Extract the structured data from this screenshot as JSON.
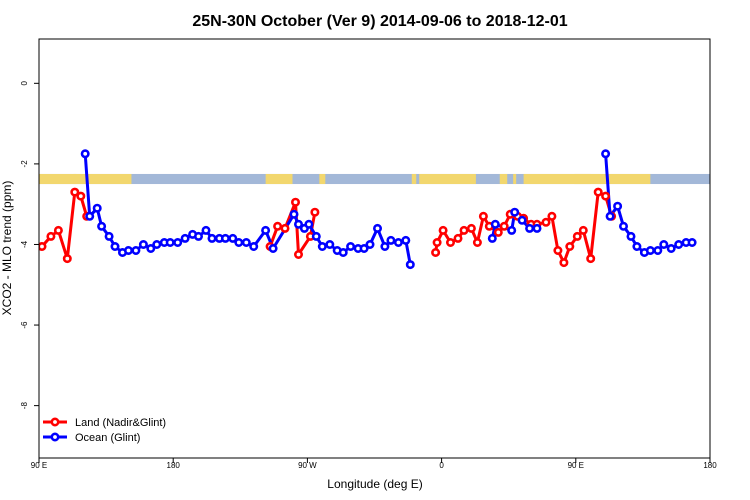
{
  "chart_data": {
    "type": "line",
    "title": "25N-30N October (Ver 9)   2014-09-06 to 2018-12-01",
    "xlabel": "Longitude (deg E)",
    "ylabel": "XCO2 - MLO trend (ppm)",
    "xlim": [
      90,
      540
    ],
    "ylim": [
      -9.3,
      1.1
    ],
    "x_ticks": [
      {
        "value": 90,
        "label": "90 E"
      },
      {
        "value": 180,
        "label": "180"
      },
      {
        "value": 270,
        "label": "90 W"
      },
      {
        "value": 360,
        "label": "0"
      },
      {
        "value": 450,
        "label": "90 E"
      },
      {
        "value": 540,
        "label": "180"
      }
    ],
    "y_ticks": [
      {
        "value": 0,
        "label": "0"
      },
      {
        "value": -2,
        "label": "-2"
      },
      {
        "value": -4,
        "label": "-4"
      },
      {
        "value": -6,
        "label": "-6"
      },
      {
        "value": -8,
        "label": "-8"
      }
    ],
    "legend_position": "bottom-left",
    "land_ocean_strip": {
      "y_top": -2.25,
      "y_bottom": -2.5,
      "ocean_color": "#a3b8d8",
      "land_color": "#f2d76e",
      "land_ranges": [
        [
          90,
          115
        ],
        [
          113,
          152
        ],
        [
          242,
          260
        ],
        [
          278,
          282
        ],
        [
          340,
          343
        ],
        [
          345,
          383
        ],
        [
          399,
          404
        ],
        [
          408,
          410
        ],
        [
          415,
          460
        ],
        [
          449,
          500
        ]
      ]
    },
    "series": [
      {
        "name": "Land (Nadir&Glint)",
        "color": "#ff0000",
        "segments": [
          [
            [
              92,
              -4.05
            ],
            [
              98,
              -3.8
            ],
            [
              103,
              -3.65
            ],
            [
              109,
              -4.35
            ],
            [
              114,
              -2.7
            ],
            [
              118,
              -2.8
            ],
            [
              122,
              -3.3
            ]
          ],
          [
            [
              245,
              -4.05
            ],
            [
              250,
              -3.55
            ],
            [
              255,
              -3.6
            ],
            [
              262,
              -2.95
            ],
            [
              264,
              -4.25
            ],
            [
              272,
              -3.8
            ],
            [
              275,
              -3.2
            ]
          ],
          [
            [
              356,
              -4.2
            ],
            [
              357,
              -3.95
            ],
            [
              361,
              -3.65
            ],
            [
              366,
              -3.95
            ],
            [
              371,
              -3.85
            ],
            [
              375,
              -3.65
            ],
            [
              380,
              -3.6
            ],
            [
              384,
              -3.95
            ],
            [
              388,
              -3.3
            ],
            [
              392,
              -3.55
            ],
            [
              398,
              -3.7
            ],
            [
              402,
              -3.55
            ],
            [
              406,
              -3.25
            ],
            [
              411,
              -3.3
            ],
            [
              415,
              -3.35
            ],
            [
              420,
              -3.5
            ],
            [
              424,
              -3.5
            ],
            [
              430,
              -3.45
            ],
            [
              434,
              -3.3
            ],
            [
              438,
              -4.15
            ],
            [
              442,
              -4.45
            ],
            [
              446,
              -4.05
            ],
            [
              451,
              -3.8
            ],
            [
              455,
              -3.65
            ],
            [
              460,
              -4.35
            ],
            [
              465,
              -2.7
            ],
            [
              470,
              -2.8
            ],
            [
              474,
              -3.3
            ]
          ]
        ]
      },
      {
        "name": "Ocean (Glint)",
        "color": "#0000ff",
        "segments": [
          [
            [
              121,
              -1.75
            ],
            [
              124,
              -3.3
            ],
            [
              129,
              -3.1
            ],
            [
              132,
              -3.55
            ],
            [
              137,
              -3.8
            ],
            [
              141,
              -4.05
            ],
            [
              146,
              -4.2
            ],
            [
              150,
              -4.15
            ],
            [
              155,
              -4.15
            ],
            [
              160,
              -4.0
            ],
            [
              165,
              -4.1
            ],
            [
              169,
              -4.0
            ],
            [
              174,
              -3.95
            ],
            [
              178,
              -3.95
            ],
            [
              183,
              -3.95
            ],
            [
              188,
              -3.85
            ],
            [
              193,
              -3.75
            ],
            [
              197,
              -3.8
            ],
            [
              202,
              -3.65
            ],
            [
              206,
              -3.85
            ],
            [
              211,
              -3.85
            ],
            [
              215,
              -3.85
            ],
            [
              220,
              -3.85
            ],
            [
              224,
              -3.95
            ],
            [
              229,
              -3.95
            ],
            [
              234,
              -4.05
            ],
            [
              242,
              -3.65
            ],
            [
              247,
              -4.1
            ],
            [
              261,
              -3.25
            ],
            [
              264,
              -3.5
            ],
            [
              268,
              -3.6
            ],
            [
              271,
              -3.5
            ],
            [
              276,
              -3.8
            ],
            [
              280,
              -4.05
            ],
            [
              285,
              -4.0
            ],
            [
              290,
              -4.15
            ],
            [
              294,
              -4.2
            ],
            [
              299,
              -4.05
            ],
            [
              304,
              -4.1
            ],
            [
              308,
              -4.1
            ],
            [
              312,
              -4.0
            ],
            [
              317,
              -3.6
            ],
            [
              322,
              -4.05
            ],
            [
              326,
              -3.9
            ],
            [
              331,
              -3.95
            ],
            [
              336,
              -3.9
            ],
            [
              339,
              -4.5
            ]
          ],
          [
            [
              394,
              -3.85
            ],
            [
              396,
              -3.5
            ],
            [
              407,
              -3.65
            ],
            [
              409,
              -3.2
            ],
            [
              414,
              -3.4
            ],
            [
              419,
              -3.6
            ],
            [
              424,
              -3.6
            ]
          ],
          [
            [
              470,
              -1.75
            ],
            [
              473,
              -3.3
            ],
            [
              478,
              -3.05
            ],
            [
              482,
              -3.55
            ],
            [
              487,
              -3.8
            ],
            [
              491,
              -4.05
            ],
            [
              496,
              -4.2
            ],
            [
              500,
              -4.15
            ],
            [
              505,
              -4.15
            ],
            [
              509,
              -4.0
            ],
            [
              514,
              -4.1
            ],
            [
              519,
              -4.0
            ],
            [
              524,
              -3.95
            ],
            [
              528,
              -3.95
            ]
          ]
        ]
      }
    ]
  }
}
